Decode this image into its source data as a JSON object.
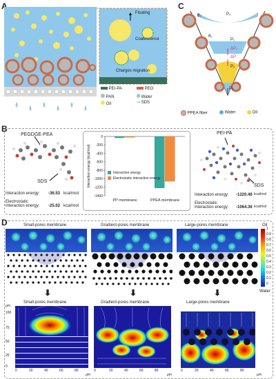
{
  "panels": {
    "a": "A",
    "b": "B",
    "c": "C",
    "d": "D"
  },
  "panelA": {
    "zoom_labels": {
      "floating": "Floating",
      "coalescence": "Coalescence",
      "migration": "Charges migration"
    },
    "legend": [
      {
        "label": "PEI-PA",
        "color": "#3a6e5f"
      },
      {
        "label": "PEO",
        "color": "#c96a4a"
      },
      {
        "label": "PAN",
        "color": "#b8b8b8"
      },
      {
        "label": "Water",
        "color": "#8fc8ea"
      },
      {
        "label": "Oil",
        "color": "#f4e25a"
      },
      {
        "label": "SDS",
        "color": "#2e9a4b"
      }
    ]
  },
  "panelC": {
    "labels": {
      "p0": "P₀",
      "theta1": "θ₁",
      "theta2": "θ₂",
      "p1": "P₁",
      "dp1": "ΔP₁",
      "dp": "ΔP",
      "p2": "P₂",
      "pv": "Pᵥ"
    },
    "legend": [
      {
        "label": "PPEA fiber",
        "color": "#c96a4a"
      },
      {
        "label": "Water",
        "color": "#5aaee0"
      },
      {
        "label": "Oil",
        "color": "#f4d23a"
      }
    ]
  },
  "panelB": {
    "left": {
      "title": "PEGDGE-PEA",
      "sds": "SDS",
      "ie_label": "Interaction energy:",
      "ie_value": "-36.53",
      "unit": "kcal/mol",
      "ee_label": "Electrostatic interaction energy:",
      "ee_value": "-25.02"
    },
    "right": {
      "title": "PEI-PA",
      "sds": "SDS",
      "ie_label": "Interaction energy:",
      "ie_value": "-1220.46",
      "unit": "kcal/mol",
      "ee_label": "Electrostatic interaction energy:",
      "ee_value": "-1064.36"
    }
  },
  "chart_data": {
    "type": "bar",
    "categories": [
      "PP membrane",
      "PPEA membrane"
    ],
    "series": [
      {
        "name": "Interaction energy",
        "values": [
          -36.53,
          -1220.46
        ],
        "color": "#3aa79a"
      },
      {
        "name": "Electrostatic interaction energy",
        "values": [
          -25.02,
          -1064.36
        ],
        "color": "#f28a3c"
      }
    ],
    "ylabel": "Interaction energy (kcal/mol)",
    "ylim": [
      -1400,
      0
    ],
    "yticks": [
      0,
      -200,
      -400,
      -600,
      -800,
      -1000,
      -1200,
      -1400
    ],
    "legend_position": "center"
  },
  "panelD": {
    "titles_top": [
      "Small-pores membrane",
      "Gradient-pores membrane",
      "Large-pores membrane"
    ],
    "titles_bottom": [
      "Small-pores membrane",
      "Gradient-pores membrane",
      "Large-pores membrane"
    ],
    "colorbar": {
      "top": "Oil",
      "bottom": "Water",
      "ticks": [
        "1",
        "0.9",
        "0.8",
        "0.7",
        "0.6",
        "0.5",
        "0.4",
        "0.3",
        "0.2",
        "0.1",
        "0"
      ]
    },
    "axis_unit": "μm",
    "yticks": [
      "100",
      "75",
      "50",
      "25",
      "0"
    ],
    "xticks": [
      "0",
      "20",
      "40",
      "60",
      "80"
    ]
  },
  "colors": {
    "water": "#8fc8ea",
    "oil": "#f4e25a",
    "peo": "#c96a4a",
    "pei": "#3a6e5f"
  }
}
